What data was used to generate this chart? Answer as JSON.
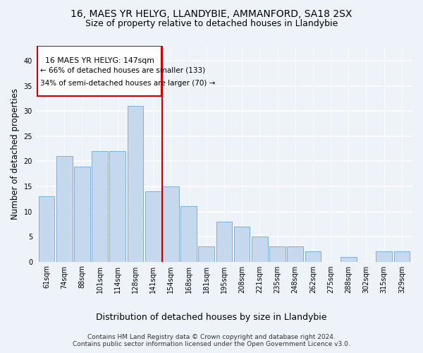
{
  "title1": "16, MAES YR HELYG, LLANDYBIE, AMMANFORD, SA18 2SX",
  "title2": "Size of property relative to detached houses in Llandybie",
  "xlabel": "Distribution of detached houses by size in Llandybie",
  "ylabel": "Number of detached properties",
  "categories": [
    "61sqm",
    "74sqm",
    "88sqm",
    "101sqm",
    "114sqm",
    "128sqm",
    "141sqm",
    "154sqm",
    "168sqm",
    "181sqm",
    "195sqm",
    "208sqm",
    "221sqm",
    "235sqm",
    "248sqm",
    "262sqm",
    "275sqm",
    "288sqm",
    "302sqm",
    "315sqm",
    "329sqm"
  ],
  "values": [
    13,
    21,
    19,
    22,
    22,
    31,
    14,
    15,
    11,
    3,
    8,
    7,
    5,
    3,
    3,
    2,
    0,
    1,
    0,
    2,
    2
  ],
  "bar_color": "#c5d8ed",
  "bar_edge_color": "#6fa8d0",
  "annotation_line_label": "16 MAES YR HELYG: 147sqm",
  "annotation_text2": "← 66% of detached houses are smaller (133)",
  "annotation_text3": "34% of semi-detached houses are larger (70) →",
  "vline_color": "#cc0000",
  "annotation_box_edge": "#cc0000",
  "ylim": [
    0,
    43
  ],
  "footnote1": "Contains HM Land Registry data © Crown copyright and database right 2024.",
  "footnote2": "Contains public sector information licensed under the Open Government Licence v3.0.",
  "bg_color": "#eef2f9"
}
